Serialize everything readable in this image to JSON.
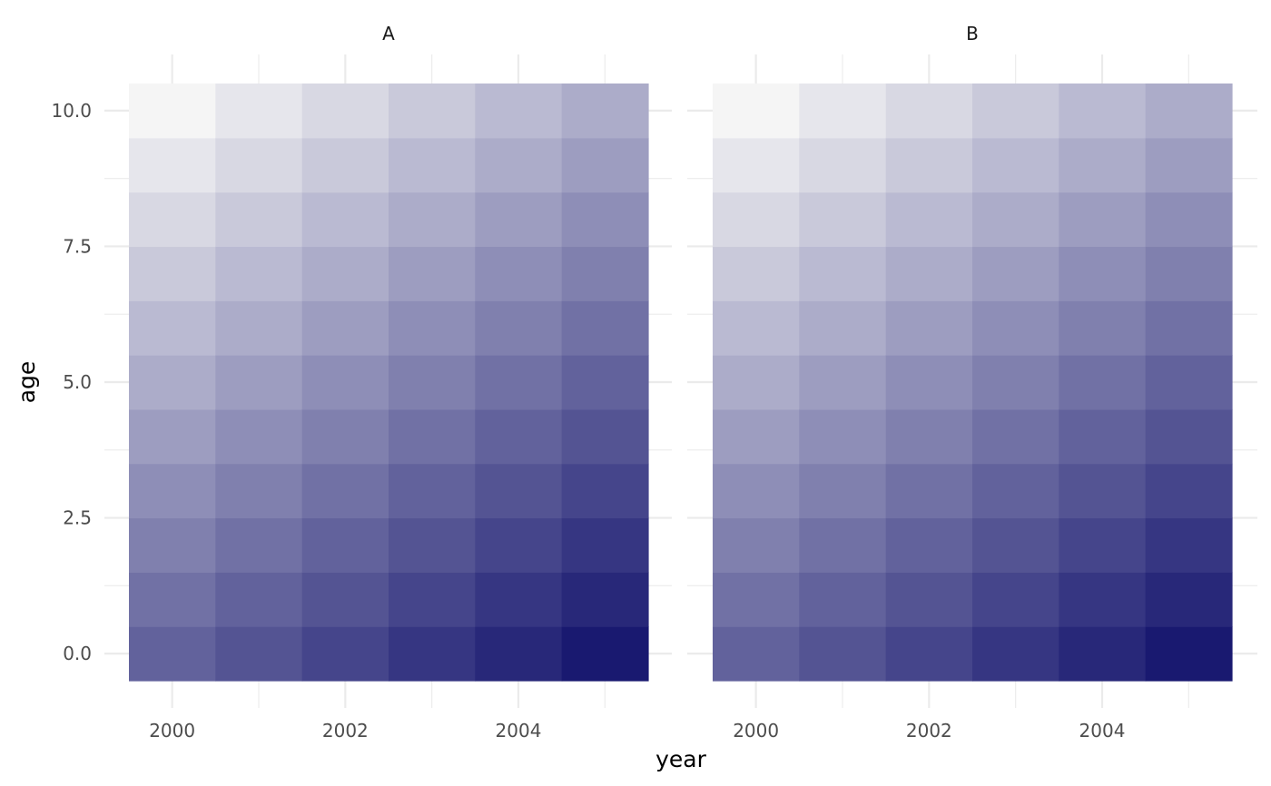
{
  "chart_data": {
    "type": "heatmap",
    "title": "",
    "xlabel": "year",
    "ylabel": "age",
    "x": [
      2000,
      2001,
      2002,
      2003,
      2004,
      2005
    ],
    "y": [
      0,
      1,
      2,
      3,
      4,
      5,
      6,
      7,
      8,
      9,
      10
    ],
    "xlim": [
      1999.5,
      2005.5
    ],
    "ylim": [
      -0.5,
      10.5
    ],
    "x_ticks": [
      2000,
      2002,
      2004
    ],
    "x_tick_labels": [
      "2000",
      "2002",
      "2004"
    ],
    "y_ticks": [
      0,
      2.5,
      5,
      7.5,
      10
    ],
    "y_tick_labels": [
      "0.0",
      "2.5",
      "5.0",
      "7.5",
      "10.0"
    ],
    "grid": true,
    "value_rule": "value = (year - 2000) - age",
    "value_range": [
      -10,
      5
    ],
    "color_low": "#f5f5f5",
    "color_high": "#191970",
    "panels": [
      {
        "label": "A"
      },
      {
        "label": "B"
      }
    ]
  }
}
